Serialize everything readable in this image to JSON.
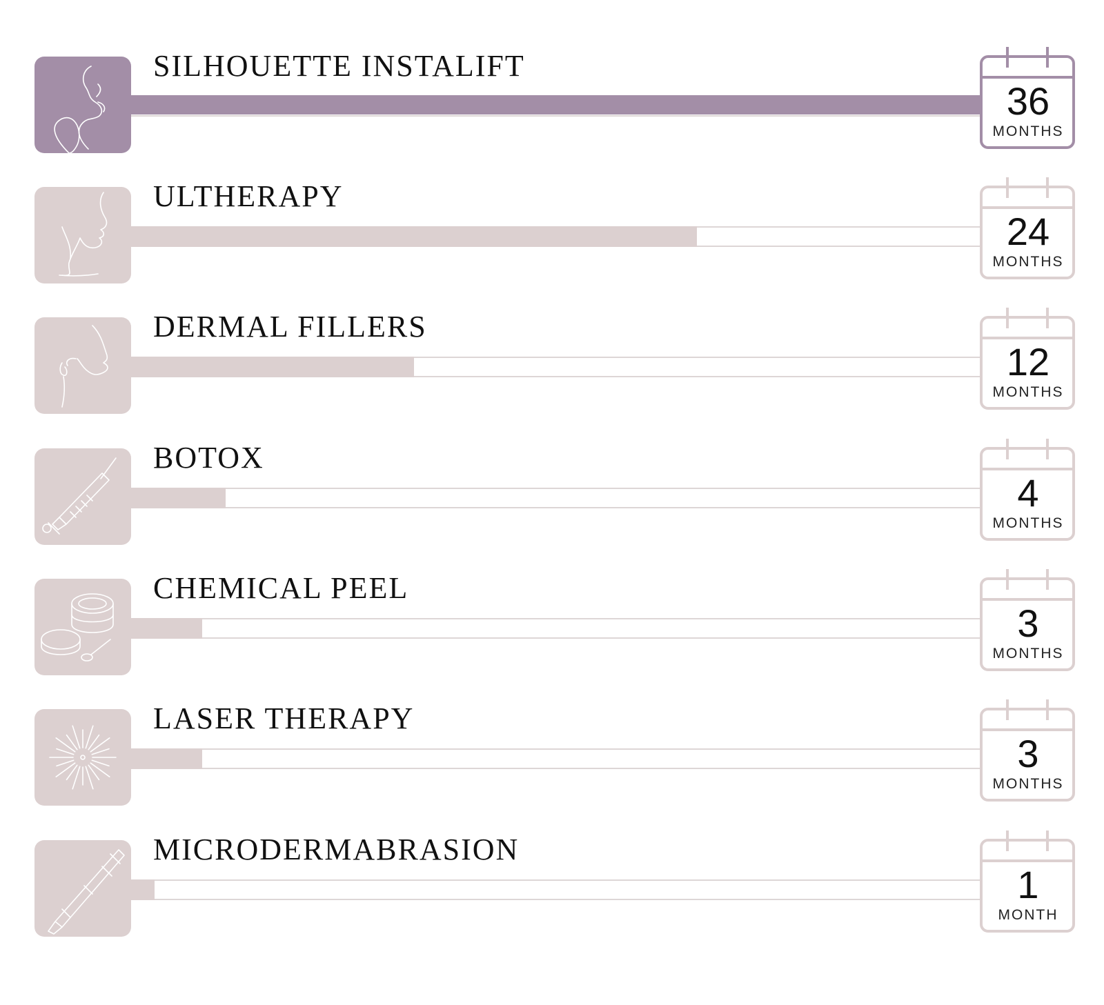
{
  "chart_data": {
    "type": "bar",
    "orientation": "horizontal",
    "categories": [
      "SILHOUETTE INSTALIFT",
      "ULTHERAPY",
      "DERMAL FILLERS",
      "BOTOX",
      "CHEMICAL PEEL",
      "LASER THERAPY",
      "MICRODERMABRASION"
    ],
    "values": [
      36,
      24,
      12,
      4,
      3,
      3,
      1
    ],
    "value_units": [
      "MONTHS",
      "MONTHS",
      "MONTHS",
      "MONTHS",
      "MONTHS",
      "MONTHS",
      "MONTH"
    ],
    "xlim": [
      0,
      36
    ],
    "title": "",
    "xlabel": "",
    "ylabel": "",
    "grid": false,
    "legend": "none"
  },
  "items": [
    {
      "icon": "face-profile-line-icon"
    },
    {
      "icon": "face-neck-line-icon"
    },
    {
      "icon": "face-earring-line-icon"
    },
    {
      "icon": "syringe-icon"
    },
    {
      "icon": "cream-jar-icon"
    },
    {
      "icon": "laser-burst-icon"
    },
    {
      "icon": "dermabrasion-pen-icon"
    }
  ],
  "colors": {
    "highlight": "#a38ea7",
    "muted": "#dcd0d0",
    "track_line": "#ddd6d6",
    "text": "#111111"
  }
}
